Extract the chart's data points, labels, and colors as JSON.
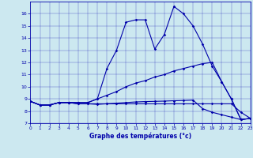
{
  "xlabel": "Graphe des températures (°c)",
  "background_color": "#cce8f0",
  "line_color": "#0000aa",
  "x": [
    0,
    1,
    2,
    3,
    4,
    5,
    6,
    7,
    8,
    9,
    10,
    11,
    12,
    13,
    14,
    15,
    16,
    17,
    18,
    19,
    20,
    21,
    22,
    23
  ],
  "series1": [
    8.8,
    8.5,
    8.5,
    8.7,
    8.7,
    8.7,
    8.7,
    9.0,
    11.5,
    13.0,
    15.3,
    15.5,
    15.5,
    13.1,
    14.3,
    16.6,
    16.0,
    15.0,
    13.5,
    11.7,
    10.4,
    9.0,
    7.3,
    7.4
  ],
  "series2": [
    8.8,
    8.5,
    8.5,
    8.7,
    8.7,
    8.7,
    8.7,
    9.0,
    9.3,
    9.6,
    10.0,
    10.3,
    10.5,
    10.8,
    11.0,
    11.3,
    11.5,
    11.7,
    11.9,
    12.0,
    10.4,
    9.0,
    7.3,
    7.4
  ],
  "series3": [
    8.8,
    8.5,
    8.5,
    8.7,
    8.7,
    8.6,
    8.6,
    8.6,
    8.6,
    8.6,
    8.6,
    8.6,
    8.6,
    8.6,
    8.6,
    8.6,
    8.6,
    8.6,
    8.6,
    8.6,
    8.6,
    8.6,
    7.9,
    7.4
  ],
  "series4": [
    8.8,
    8.5,
    8.5,
    8.7,
    8.7,
    8.6,
    8.6,
    8.55,
    8.6,
    8.65,
    8.7,
    8.75,
    8.78,
    8.8,
    8.82,
    8.85,
    8.87,
    8.9,
    8.2,
    7.9,
    7.7,
    7.5,
    7.3,
    7.4
  ],
  "ylim": [
    7,
    17
  ],
  "xlim": [
    0,
    23
  ],
  "yticks": [
    7,
    8,
    9,
    10,
    11,
    12,
    13,
    14,
    15,
    16
  ],
  "xticks": [
    0,
    1,
    2,
    3,
    4,
    5,
    6,
    7,
    8,
    9,
    10,
    11,
    12,
    13,
    14,
    15,
    16,
    17,
    18,
    19,
    20,
    21,
    22,
    23
  ]
}
